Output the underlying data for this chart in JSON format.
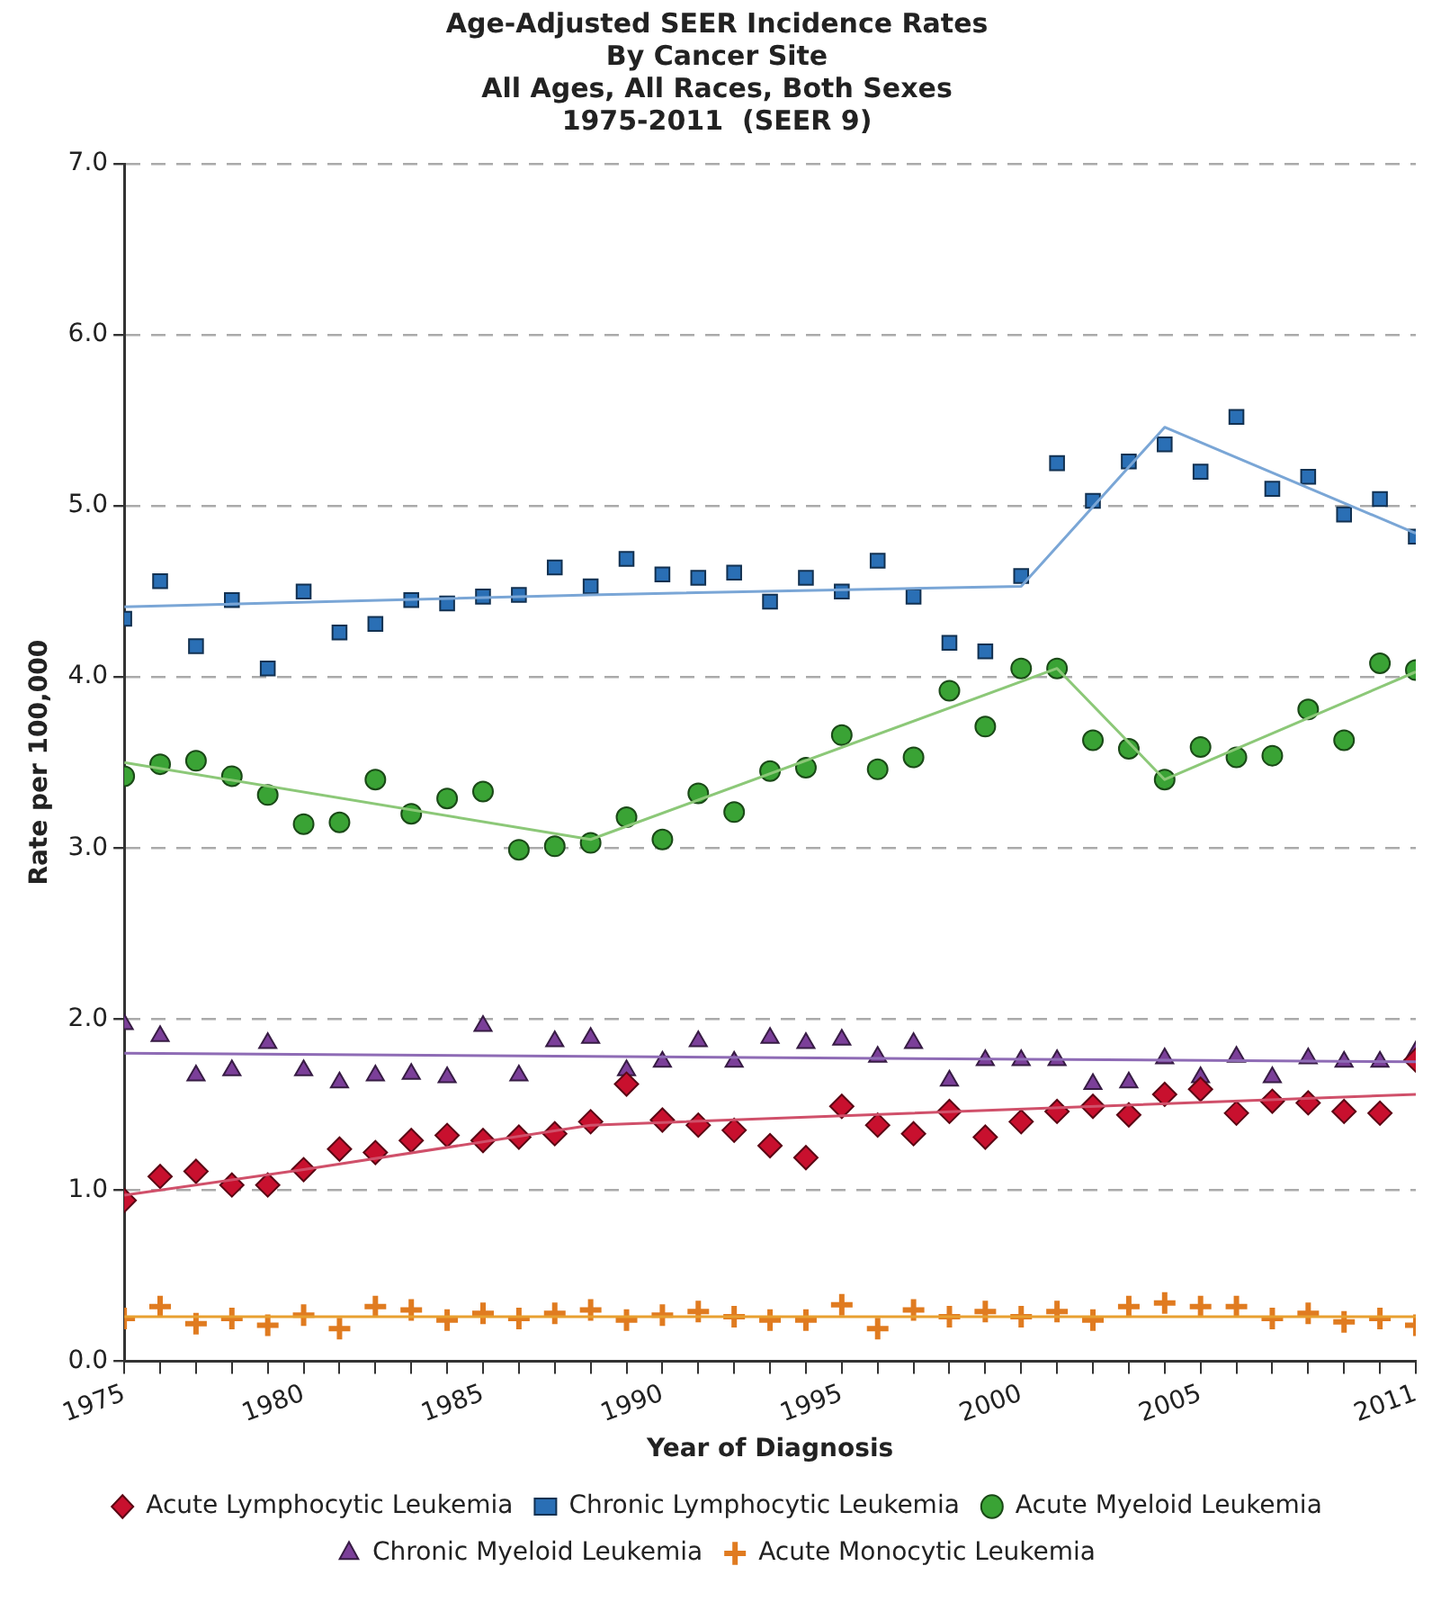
{
  "chart_data": {
    "type": "scatter",
    "title": "Age-Adjusted SEER Incidence Rates\nBy Cancer Site\nAll Ages, All Races, Both Sexes\n1975-2011  (SEER 9)",
    "xlabel": "Year of Diagnosis",
    "ylabel": "Rate per 100,000",
    "x": [
      1975,
      1976,
      1977,
      1978,
      1979,
      1980,
      1981,
      1982,
      1983,
      1984,
      1985,
      1986,
      1987,
      1988,
      1989,
      1990,
      1991,
      1992,
      1993,
      1994,
      1995,
      1996,
      1997,
      1998,
      1999,
      2000,
      2001,
      2002,
      2003,
      2004,
      2005,
      2006,
      2007,
      2008,
      2009,
      2010,
      2011
    ],
    "xlim": [
      1975,
      2011
    ],
    "xticks": [
      1975,
      {
        "value": 1976,
        "label": null
      },
      {
        "value": 1977,
        "label": null
      },
      {
        "value": 1978,
        "label": null
      },
      {
        "value": 1979,
        "label": null
      },
      1980,
      {
        "value": 1981,
        "label": null
      },
      {
        "value": 1982,
        "label": null
      },
      {
        "value": 1983,
        "label": null
      },
      {
        "value": 1984,
        "label": null
      },
      1985,
      {
        "value": 1986,
        "label": null
      },
      {
        "value": 1987,
        "label": null
      },
      {
        "value": 1988,
        "label": null
      },
      {
        "value": 1989,
        "label": null
      },
      1990,
      {
        "value": 1991,
        "label": null
      },
      {
        "value": 1992,
        "label": null
      },
      {
        "value": 1993,
        "label": null
      },
      {
        "value": 1994,
        "label": null
      },
      1995,
      {
        "value": 1996,
        "label": null
      },
      {
        "value": 1997,
        "label": null
      },
      {
        "value": 1998,
        "label": null
      },
      {
        "value": 1999,
        "label": null
      },
      2000,
      {
        "value": 2001,
        "label": null
      },
      {
        "value": 2002,
        "label": null
      },
      {
        "value": 2003,
        "label": null
      },
      {
        "value": 2004,
        "label": null
      },
      2005,
      {
        "value": 2006,
        "label": null
      },
      {
        "value": 2007,
        "label": null
      },
      {
        "value": 2008,
        "label": null
      },
      {
        "value": 2009,
        "label": null
      },
      {
        "value": 2010,
        "label": null
      },
      2011
    ],
    "ylim": [
      0,
      7
    ],
    "yticks": [
      {
        "value": 0,
        "label": "0.0"
      },
      {
        "value": 1,
        "label": "1.0"
      },
      {
        "value": 2,
        "label": "2.0"
      },
      {
        "value": 3,
        "label": "3.0"
      },
      {
        "value": 4,
        "label": "4.0"
      },
      {
        "value": 5,
        "label": "5.0"
      },
      {
        "value": 6,
        "label": "6.0"
      },
      {
        "value": 7,
        "label": "7.0"
      }
    ],
    "grid": "y",
    "legend": "bottom",
    "series": [
      {
        "name": "Acute Lymphocytic Leukemia",
        "color": "#c8102e",
        "marker": "diamond",
        "values": [
          0.94,
          1.08,
          1.11,
          1.03,
          1.03,
          1.12,
          1.24,
          1.22,
          1.29,
          1.32,
          1.29,
          1.31,
          1.33,
          1.4,
          1.62,
          1.41,
          1.38,
          1.35,
          1.26,
          1.19,
          1.49,
          1.38,
          1.33,
          1.46,
          1.31,
          1.4,
          1.46,
          1.49,
          1.44,
          1.56,
          1.59,
          1.45,
          1.52,
          1.51,
          1.46,
          1.45,
          1.76
        ]
      },
      {
        "name": "Chronic Lymphocytic Leukemia",
        "color": "#2a6fb5",
        "marker": "square",
        "values": [
          4.34,
          4.56,
          4.18,
          4.45,
          4.05,
          4.5,
          4.26,
          4.31,
          4.45,
          4.43,
          4.47,
          4.48,
          4.64,
          4.53,
          4.69,
          4.6,
          4.58,
          4.61,
          4.44,
          4.58,
          4.5,
          4.68,
          4.47,
          4.2,
          4.15,
          4.59,
          5.25,
          5.03,
          5.26,
          5.36,
          5.2,
          5.52,
          5.1,
          5.17,
          4.95,
          5.04,
          4.82
        ]
      },
      {
        "name": "Acute Myeloid Leukemia",
        "color": "#3aa335",
        "marker": "circle",
        "values": [
          3.42,
          3.49,
          3.51,
          3.42,
          3.31,
          3.14,
          3.15,
          3.4,
          3.2,
          3.29,
          3.33,
          2.99,
          3.01,
          3.03,
          3.18,
          3.05,
          3.32,
          3.21,
          3.45,
          3.47,
          3.66,
          3.46,
          3.53,
          3.92,
          3.71,
          4.05,
          4.05,
          3.63,
          3.58,
          3.4,
          3.59,
          3.53,
          3.54,
          3.81,
          3.63,
          4.08,
          4.04
        ]
      },
      {
        "name": "Chronic Myeloid Leukemia",
        "color": "#7b3f99",
        "marker": "triangle",
        "values": [
          1.97,
          1.9,
          1.67,
          1.7,
          1.86,
          1.7,
          1.63,
          1.67,
          1.68,
          1.66,
          1.96,
          1.67,
          1.87,
          1.89,
          1.7,
          1.75,
          1.87,
          1.75,
          1.89,
          1.86,
          1.88,
          1.78,
          1.86,
          1.64,
          1.76,
          1.76,
          1.76,
          1.62,
          1.63,
          1.77,
          1.66,
          1.78,
          1.66,
          1.77,
          1.75,
          1.75,
          1.81
        ]
      },
      {
        "name": "Acute Monocytic Leukemia",
        "color": "#e07b20",
        "marker": "cross",
        "values": [
          0.25,
          0.32,
          0.22,
          0.25,
          0.21,
          0.27,
          0.19,
          0.32,
          0.3,
          0.24,
          0.28,
          0.25,
          0.28,
          0.3,
          0.24,
          0.27,
          0.29,
          0.26,
          0.24,
          0.24,
          0.33,
          0.19,
          0.3,
          0.26,
          0.29,
          0.26,
          0.29,
          0.24,
          0.32,
          0.34,
          0.32,
          0.32,
          0.25,
          0.28,
          0.23,
          0.25,
          0.21
        ]
      },
      {
        "type": "line",
        "color": "#d0506a",
        "marker": "none",
        "x": [
          1975,
          1980,
          1988,
          2011
        ],
        "values": [
          0.97,
          1.12,
          1.38,
          1.56
        ]
      },
      {
        "type": "line",
        "color": "#7aa6d6",
        "marker": "none",
        "x": [
          1975,
          1988,
          2000,
          2004,
          2011
        ],
        "values": [
          4.41,
          4.48,
          4.53,
          5.46,
          4.84
        ]
      },
      {
        "type": "line",
        "color": "#8cc878",
        "marker": "none",
        "x": [
          1975,
          1988,
          2001,
          2004,
          2011
        ],
        "values": [
          3.5,
          3.05,
          4.05,
          3.4,
          4.03
        ]
      },
      {
        "type": "line",
        "color": "#8e6bb5",
        "marker": "none",
        "x": [
          1975,
          2011
        ],
        "values": [
          1.8,
          1.75
        ]
      },
      {
        "type": "line",
        "color": "#e8a030",
        "marker": "none",
        "x": [
          1975,
          2011
        ],
        "values": [
          0.26,
          0.26
        ]
      }
    ]
  }
}
